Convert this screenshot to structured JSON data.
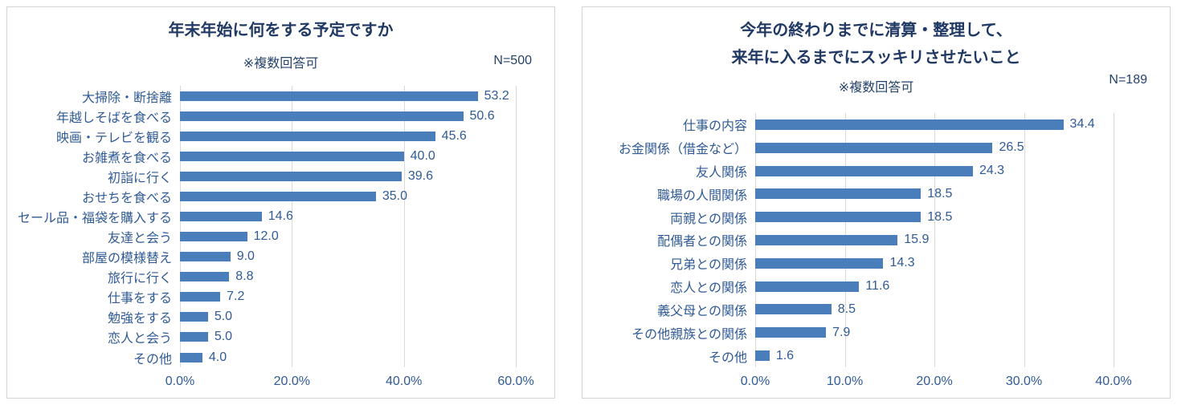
{
  "colors": {
    "bar": "#4A7EBB",
    "title": "#1F3864",
    "subtitle": "#24426B",
    "label": "#2F5A96",
    "gridline": "#D9D9D9",
    "panel_border": "#D2D4D6"
  },
  "chart_data": [
    {
      "type": "bar",
      "orientation": "horizontal",
      "title": "年末年始に何をする予定ですか",
      "subtitle": "※複数回答可",
      "n_label": "N=500",
      "categories": [
        "大掃除・断捨離",
        "年越しそばを食べる",
        "映画・テレビを観る",
        "お雑煮を食べる",
        "初詣に行く",
        "おせちを食べる",
        "セール品・福袋を購入する",
        "友達と会う",
        "部屋の模様替え",
        "旅行に行く",
        "仕事をする",
        "勉強をする",
        "恋人と会う",
        "その他"
      ],
      "values": [
        53.2,
        50.6,
        45.6,
        40.0,
        39.6,
        35.0,
        14.6,
        12.0,
        9.0,
        8.8,
        7.2,
        5.0,
        5.0,
        4.0
      ],
      "xlabel": "",
      "ylabel": "",
      "xlim": [
        0,
        60
      ],
      "grid": true,
      "legend": false,
      "ticks": [
        {
          "value": 0,
          "label": "0.0%"
        },
        {
          "value": 20,
          "label": "20.0%"
        },
        {
          "value": 40,
          "label": "40.0%"
        },
        {
          "value": 60,
          "label": "60.0%"
        }
      ]
    },
    {
      "type": "bar",
      "orientation": "horizontal",
      "title_lines": [
        "今年の終わりまでに清算・整理して、",
        "来年に入るまでにスッキリさせたいこと"
      ],
      "subtitle": "※複数回答可",
      "n_label": "N=189",
      "categories": [
        "仕事の内容",
        "お金関係（借金など）",
        "友人関係",
        "職場の人間関係",
        "両親との関係",
        "配偶者との関係",
        "兄弟との関係",
        "恋人との関係",
        "義父母との関係",
        "その他親族との関係",
        "その他"
      ],
      "values": [
        34.4,
        26.5,
        24.3,
        18.5,
        18.5,
        15.9,
        14.3,
        11.6,
        8.5,
        7.9,
        1.6
      ],
      "xlabel": "",
      "ylabel": "",
      "xlim": [
        0,
        40
      ],
      "grid": true,
      "legend": false,
      "ticks": [
        {
          "value": 0,
          "label": "0.0%"
        },
        {
          "value": 10,
          "label": "10.0%"
        },
        {
          "value": 20,
          "label": "20.0%"
        },
        {
          "value": 30,
          "label": "30.0%"
        },
        {
          "value": 40,
          "label": "40.0%"
        }
      ]
    }
  ]
}
